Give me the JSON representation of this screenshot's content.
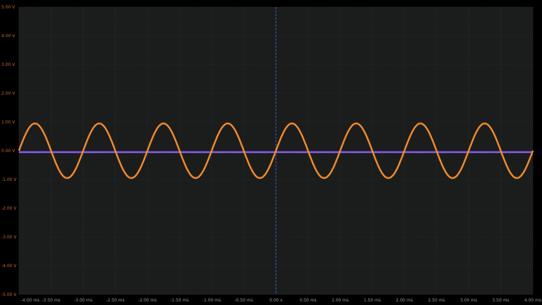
{
  "chart_data": {
    "type": "line",
    "title": "",
    "xlabel": "",
    "ylabel": "",
    "xlim": [
      -4,
      4
    ],
    "ylim": [
      -5,
      5
    ],
    "grid": true,
    "x_unit": "ms",
    "x_tick_labels": [
      "-4.00 ms",
      "-3.50 ms",
      "-3.00 ms",
      "-2.50 ms",
      "-2.00 ms",
      "-1.50 ms",
      "-1.00 ms",
      "-0.50 ms",
      "0.00 s",
      "0.50 ms",
      "1.00 ms",
      "1.50 ms",
      "2.00 ms",
      "2.50 ms",
      "3.00 ms",
      "3.50 ms",
      "4.00 ms"
    ],
    "x_tick_values": [
      -4,
      -3.5,
      -3,
      -2.5,
      -2,
      -1.5,
      -1,
      -0.5,
      0,
      0.5,
      1,
      1.5,
      2,
      2.5,
      3,
      3.5,
      4
    ],
    "y_tick_labels": [
      "5.00 V",
      "4.00 V",
      "3.00 V",
      "2.00 V",
      "1.00 V",
      "0.00 V",
      "-1.00 V",
      "-2.00 V",
      "-3.00 V",
      "-4.00 V",
      "-5.00 V"
    ],
    "y_tick_values": [
      5,
      4,
      3,
      2,
      1,
      0,
      -1,
      -2,
      -3,
      -4,
      -5
    ],
    "series": [
      {
        "color": "#f08a2c",
        "kind": "sine",
        "amplitude_v": 0.95,
        "period_ms": 1.0,
        "zero_crossing_rising_ms": -4.0,
        "offset_v": 0
      },
      {
        "color": "#8a5cf0",
        "kind": "dc",
        "offset_v": -0.05
      }
    ],
    "trigger_marker_ms": 0,
    "colors": {
      "background": "#1b1d1d",
      "grid": "#3a3d3d",
      "ylabel": "#c86a2e",
      "xlabel": "#9a9a9a",
      "trigger": "#3b5cc8"
    }
  }
}
